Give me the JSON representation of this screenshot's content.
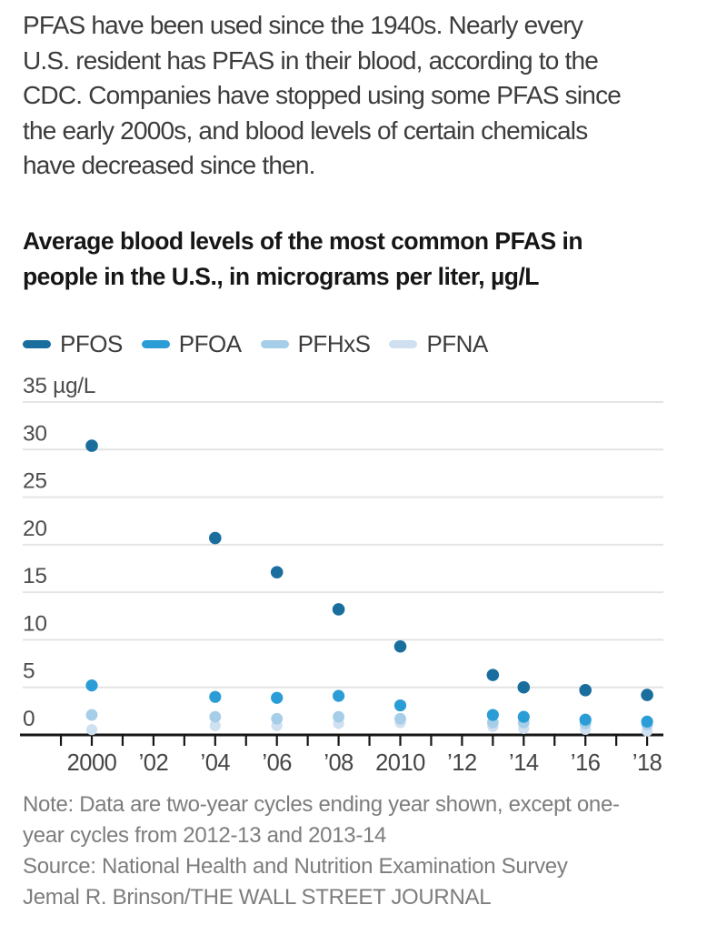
{
  "intro": {
    "lines": [
      "PFAS have been used since the 1940s. Nearly every",
      "U.S. resident has PFAS in their blood, according to the",
      "CDC. Companies have stopped using some PFAS since",
      "the early 2000s, and blood levels of certain chemicals",
      "have decreased since then."
    ]
  },
  "chart": {
    "title_lines": [
      "Average blood levels of the most common PFAS in",
      "people in the U.S., in micrograms per liter, µg/L"
    ],
    "legend": [
      {
        "label": "PFOS",
        "color": "#1a6e9e"
      },
      {
        "label": "PFOA",
        "color": "#2b9dd6"
      },
      {
        "label": "PFHxS",
        "color": "#a6cee8"
      },
      {
        "label": "PFNA",
        "color": "#cfe0f1"
      }
    ]
  },
  "chart_data": {
    "type": "scatter",
    "title": "Average blood levels of the most common PFAS in people in the U.S., in micrograms per liter, µg/L",
    "x": [
      2000,
      2004,
      2006,
      2008,
      2010,
      2013,
      2014,
      2016,
      2018
    ],
    "series": [
      {
        "name": "PFOS",
        "color": "#1a6e9e",
        "values": [
          30.4,
          20.7,
          17.1,
          13.2,
          9.3,
          6.3,
          5.0,
          4.7,
          4.2
        ]
      },
      {
        "name": "PFOA",
        "color": "#2b9dd6",
        "values": [
          5.2,
          4.0,
          3.9,
          4.1,
          3.1,
          2.1,
          1.9,
          1.6,
          1.4
        ]
      },
      {
        "name": "PFHxS",
        "color": "#a6cee8",
        "values": [
          2.1,
          1.9,
          1.7,
          1.9,
          1.7,
          1.3,
          1.3,
          1.2,
          1.1
        ]
      },
      {
        "name": "PFNA",
        "color": "#cfe0f1",
        "values": [
          0.55,
          0.97,
          0.97,
          1.2,
          1.3,
          0.88,
          0.68,
          0.58,
          0.41
        ]
      }
    ],
    "ylim": [
      0,
      35
    ],
    "y_ticks": [
      0,
      5,
      10,
      15,
      20,
      25,
      30,
      35
    ],
    "y_top_tick_label": "35 µg/L",
    "x_tick_labels": [
      {
        "year": 2000,
        "label": "2000"
      },
      {
        "year": 2002,
        "label": "’02"
      },
      {
        "year": 2004,
        "label": "’04"
      },
      {
        "year": 2006,
        "label": "’06"
      },
      {
        "year": 2008,
        "label": "’08"
      },
      {
        "year": 2010,
        "label": "2010"
      },
      {
        "year": 2012,
        "label": "’12"
      },
      {
        "year": 2014,
        "label": "’14"
      },
      {
        "year": 2016,
        "label": "’16"
      },
      {
        "year": 2018,
        "label": "’18"
      }
    ],
    "x_minor_ticks": {
      "start_year": 1999,
      "end_year": 2018,
      "step": 1
    },
    "grid": true,
    "legend_position": "top",
    "colors": {
      "gridline": "#e4e4e4",
      "axis": "#161616",
      "tick_label": "#4d4d4d"
    }
  },
  "footer": {
    "note_lines": [
      "Note: Data are two-year cycles ending year shown, except one-",
      "year cycles from 2012-13 and 2013-14"
    ],
    "source": "Source: National Health and Nutrition Examination Survey",
    "credit": "Jemal R. Brinson/THE WALL STREET JOURNAL"
  }
}
